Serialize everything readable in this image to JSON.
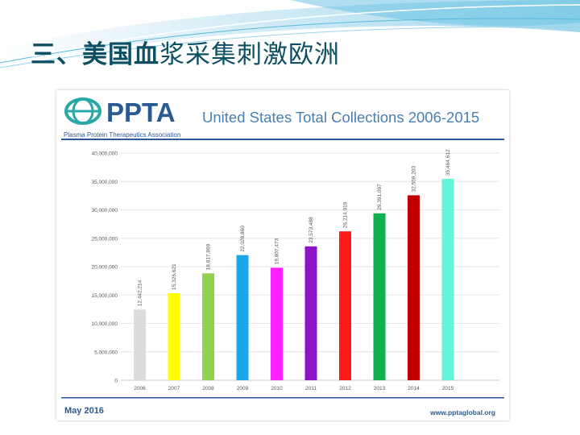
{
  "slide": {
    "title_bold": "三、美国血",
    "title_rest": "浆采集刺激欧洲"
  },
  "card": {
    "logo_text": "PPTA",
    "logo_subtitle": "Plasma Protein Therapeutics Association",
    "footer_date": "May 2016",
    "footer_url": "www.pptaglobal.org"
  },
  "colors": {
    "title": "#0d4f63",
    "chart_title": "#4a7fb0",
    "rule": "#2b5a93",
    "logo": "#2b5a93"
  },
  "chart_data": {
    "type": "bar",
    "title": "United States Total Collections 2006-2015",
    "xlabel": "",
    "ylabel": "",
    "categories": [
      "2006",
      "2007",
      "2008",
      "2009",
      "2010",
      "2011",
      "2012",
      "2013",
      "2014",
      "2015"
    ],
    "values": [
      12442214,
      15326621,
      18817869,
      22028860,
      19807473,
      23573488,
      26214019,
      29391097,
      32559203,
      35464612
    ],
    "value_labels": [
      "12,442,214",
      "15,326,621",
      "18,817,869",
      "22,028,860",
      "19,807,473",
      "23,573,488",
      "26,214,019",
      "29,391,097",
      "32,559,203",
      "35,464,612"
    ],
    "bar_colors": [
      "#dcdcdc",
      "#ffff00",
      "#92d050",
      "#1ea7e8",
      "#ff20ff",
      "#8e12c8",
      "#ff1a1a",
      "#10b050",
      "#c00000",
      "#66f5d8"
    ],
    "ylim": [
      0,
      40000000
    ],
    "yticks": [
      0,
      5000000,
      10000000,
      15000000,
      20000000,
      25000000,
      30000000,
      35000000,
      40000000
    ],
    "ytick_labels": [
      "0",
      "5,000,000",
      "10,000,000",
      "15,000,000",
      "20,000,000",
      "25,000,000",
      "30,000,000",
      "35,000,000",
      "40,000,000"
    ],
    "grid": true,
    "legend": "none"
  }
}
